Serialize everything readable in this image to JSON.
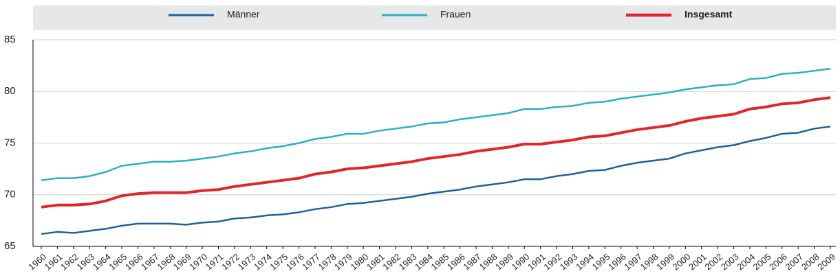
{
  "chart_data": {
    "type": "line",
    "categories": [
      "1960",
      "1961",
      "1962",
      "1963",
      "1964",
      "1965",
      "1966",
      "1967",
      "1968",
      "1969",
      "1970",
      "1971",
      "1972",
      "1973",
      "1974",
      "1975",
      "1976",
      "1977",
      "1978",
      "1979",
      "1980",
      "1981",
      "1982",
      "1983",
      "1984",
      "1985",
      "1986",
      "1987",
      "1988",
      "1989",
      "1990",
      "1991",
      "1992",
      "1993",
      "1994",
      "1995",
      "1996",
      "1997",
      "1998",
      "1999",
      "2000",
      "2001",
      "2002",
      "2003",
      "2004",
      "2005",
      "2006",
      "2007",
      "2008",
      "2009"
    ],
    "series": [
      {
        "name": "Männer",
        "color": "#1f5f9e",
        "values": [
          66.2,
          66.4,
          66.3,
          66.5,
          66.7,
          67.0,
          67.2,
          67.2,
          67.2,
          67.1,
          67.3,
          67.4,
          67.7,
          67.8,
          68.0,
          68.1,
          68.3,
          68.6,
          68.8,
          69.1,
          69.2,
          69.4,
          69.6,
          69.8,
          70.1,
          70.3,
          70.5,
          70.8,
          71.0,
          71.2,
          71.5,
          71.5,
          71.8,
          72.0,
          72.3,
          72.4,
          72.8,
          73.1,
          73.3,
          73.5,
          74.0,
          74.3,
          74.6,
          74.8,
          75.2,
          75.5,
          75.9,
          76.0,
          76.4,
          76.6
        ]
      },
      {
        "name": "Frauen",
        "color": "#2aafc9",
        "values": [
          71.4,
          71.6,
          71.6,
          71.8,
          72.2,
          72.8,
          73.0,
          73.2,
          73.2,
          73.3,
          73.5,
          73.7,
          74.0,
          74.2,
          74.5,
          74.7,
          75.0,
          75.4,
          75.6,
          75.9,
          75.9,
          76.2,
          76.4,
          76.6,
          76.9,
          77.0,
          77.3,
          77.5,
          77.7,
          77.9,
          78.3,
          78.3,
          78.5,
          78.6,
          78.9,
          79.0,
          79.3,
          79.5,
          79.7,
          79.9,
          80.2,
          80.4,
          80.6,
          80.7,
          81.2,
          81.3,
          81.7,
          81.8,
          82.0,
          82.2
        ]
      },
      {
        "name": "Insgesamt",
        "color": "#e0262c",
        "values": [
          68.8,
          69.0,
          69.0,
          69.1,
          69.4,
          69.9,
          70.1,
          70.2,
          70.2,
          70.2,
          70.4,
          70.5,
          70.8,
          71.0,
          71.2,
          71.4,
          71.6,
          72.0,
          72.2,
          72.5,
          72.6,
          72.8,
          73.0,
          73.2,
          73.5,
          73.7,
          73.9,
          74.2,
          74.4,
          74.6,
          74.9,
          74.9,
          75.1,
          75.3,
          75.6,
          75.7,
          76.0,
          76.3,
          76.5,
          76.7,
          77.1,
          77.4,
          77.6,
          77.8,
          78.3,
          78.5,
          78.8,
          78.9,
          79.2,
          79.4
        ]
      }
    ],
    "ylim": [
      65,
      85
    ],
    "yticks": [
      65,
      70,
      75,
      80,
      85
    ],
    "grid": true
  }
}
